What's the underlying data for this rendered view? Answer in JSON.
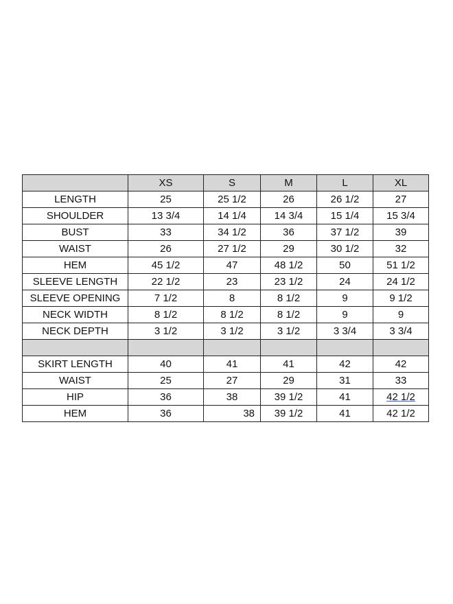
{
  "size_chart": {
    "header": [
      "",
      "XS",
      "S",
      "M",
      "L",
      "XL"
    ],
    "top_rows": [
      [
        "LENGTH",
        "25",
        "25 1/2",
        "26",
        "26 1/2",
        "27"
      ],
      [
        "SHOULDER",
        "13 3/4",
        "14 1/4",
        "14 3/4",
        "15 1/4",
        "15 3/4"
      ],
      [
        "BUST",
        "33",
        "34 1/2",
        "36",
        "37 1/2",
        "39"
      ],
      [
        "WAIST",
        "26",
        "27 1/2",
        "29",
        "30 1/2",
        "32"
      ],
      [
        "HEM",
        "45 1/2",
        "47",
        "48 1/2",
        "50",
        "51 1/2"
      ],
      [
        "SLEEVE LENGTH",
        "22 1/2",
        "23",
        "23 1/2",
        "24",
        "24 1/2"
      ],
      [
        "SLEEVE OPENING",
        "7 1/2",
        "8",
        "8 1/2",
        "9",
        "9 1/2"
      ],
      [
        "NECK WIDTH",
        "8 1/2",
        "8 1/2",
        "8 1/2",
        "9",
        "9"
      ],
      [
        "NECK DEPTH",
        "3 1/2",
        "3 1/2",
        "3 1/2",
        "3 3/4",
        "3 3/4"
      ]
    ],
    "bottom_rows": [
      [
        "SKIRT LENGTH",
        "40",
        "41",
        "41",
        "42",
        "42"
      ],
      [
        "WAIST",
        "25",
        "27",
        "29",
        "31",
        "33"
      ],
      [
        "HIP",
        "36",
        "38",
        "39 1/2",
        "41",
        "42  1/2"
      ],
      [
        "HEM",
        "36",
        "38",
        "39 1/2",
        "41",
        "42 1/2"
      ]
    ]
  }
}
